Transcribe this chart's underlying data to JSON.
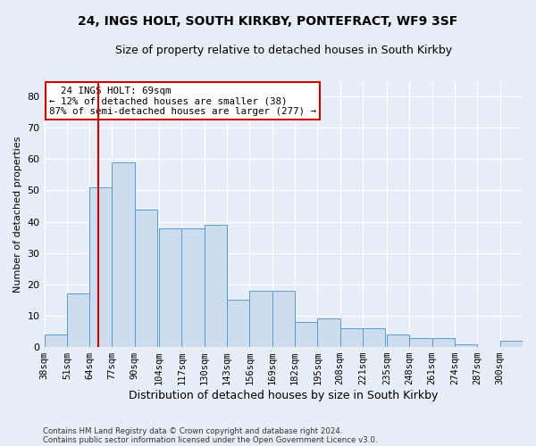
{
  "title1": "24, INGS HOLT, SOUTH KIRKBY, PONTEFRACT, WF9 3SF",
  "title2": "Size of property relative to detached houses in South Kirkby",
  "xlabel": "Distribution of detached houses by size in South Kirkby",
  "ylabel": "Number of detached properties",
  "footer1": "Contains HM Land Registry data © Crown copyright and database right 2024.",
  "footer2": "Contains public sector information licensed under the Open Government Licence v3.0.",
  "annotation_line1": "  24 INGS HOLT: 69sqm  ",
  "annotation_line2": "← 12% of detached houses are smaller (38)",
  "annotation_line3": "87% of semi-detached houses are larger (277) →",
  "bar_color": "#ccddf0",
  "bar_edgecolor": "#5b9bd5",
  "vline_color": "#cc0000",
  "vline_x": 69,
  "categories": [
    "38sqm",
    "51sqm",
    "64sqm",
    "77sqm",
    "90sqm",
    "104sqm",
    "117sqm",
    "130sqm",
    "143sqm",
    "156sqm",
    "169sqm",
    "182sqm",
    "195sqm",
    "208sqm",
    "221sqm",
    "235sqm",
    "248sqm",
    "261sqm",
    "274sqm",
    "287sqm",
    "300sqm"
  ],
  "bin_starts": [
    38,
    51,
    64,
    77,
    90,
    104,
    117,
    130,
    143,
    156,
    169,
    182,
    195,
    208,
    221,
    235,
    248,
    261,
    274,
    287,
    300
  ],
  "bin_width": 13,
  "values": [
    4,
    17,
    51,
    59,
    44,
    38,
    38,
    39,
    15,
    18,
    18,
    8,
    9,
    6,
    6,
    4,
    3,
    3,
    1,
    0,
    2
  ],
  "ylim": [
    0,
    85
  ],
  "yticks": [
    0,
    10,
    20,
    30,
    40,
    50,
    60,
    70,
    80
  ],
  "background_color": "#e8eef8",
  "axes_background": "#e8eef8",
  "grid_color": "#ffffff",
  "annotation_box_facecolor": "#ffffff",
  "annotation_box_edgecolor": "#cc0000",
  "title_fontsize": 10,
  "subtitle_fontsize": 9
}
